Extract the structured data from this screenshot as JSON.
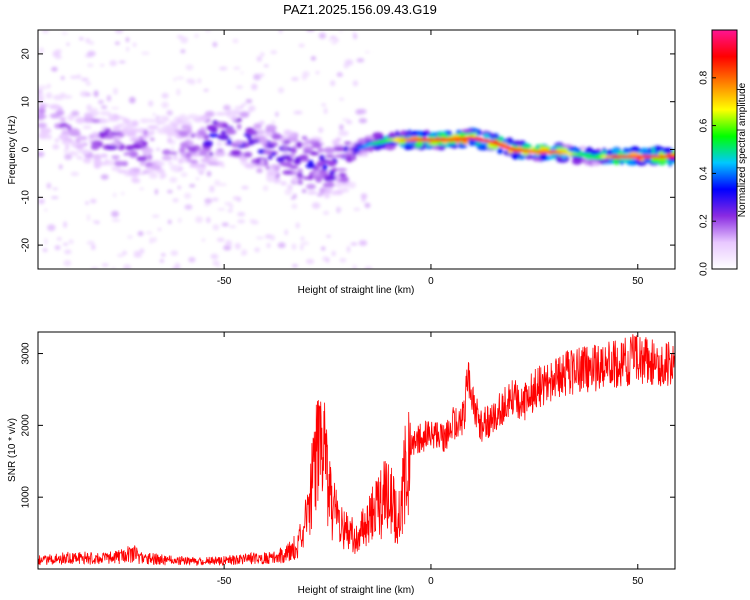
{
  "title": "PAZ1.2025.156.09.43.G19",
  "chart_data": [
    {
      "type": "heatmap",
      "xlabel": "Height of straight line (km)",
      "ylabel": "Frequency (Hz)",
      "xlim": [
        -95,
        59
      ],
      "ylim": [
        -25,
        25
      ],
      "xticks": [
        -50,
        0,
        50
      ],
      "yticks": [
        -20,
        -10,
        0,
        10,
        20
      ],
      "colorbar": {
        "label": "Normalized spectral amplitude",
        "range": [
          0,
          1
        ],
        "ticks": [
          "0.0",
          "0.2",
          "0.4",
          "0.6",
          "0.8"
        ],
        "colormap": [
          "#ffffff",
          "#e8c8ff",
          "#8a2be2",
          "#0000ff",
          "#00c8ff",
          "#00ff00",
          "#ffff00",
          "#ff8000",
          "#ff0000",
          "#ff1493"
        ]
      },
      "ridge": {
        "x": [
          -95,
          -90,
          -85,
          -80,
          -75,
          -70,
          -65,
          -60,
          -55,
          -50,
          -45,
          -40,
          -35,
          -30,
          -25,
          -22,
          -18,
          -15,
          -10,
          -5,
          0,
          5,
          10,
          15,
          20,
          25,
          30,
          35,
          40,
          45,
          50,
          55,
          59
        ],
        "y": [
          8,
          6,
          4,
          2,
          1,
          0,
          0.5,
          1,
          2,
          3,
          2.5,
          0,
          -2,
          -3,
          -4,
          -3,
          0,
          1,
          2,
          2,
          2,
          2,
          2.5,
          1.5,
          0,
          -0.5,
          -0.5,
          -1,
          -1.5,
          -1.5,
          -1.5,
          -1.5,
          -1.5
        ],
        "amplitude": [
          0.15,
          0.2,
          0.2,
          0.25,
          0.25,
          0.25,
          0.2,
          0.2,
          0.3,
          0.35,
          0.3,
          0.3,
          0.3,
          0.35,
          0.3,
          0.3,
          0.35,
          0.45,
          0.6,
          0.8,
          0.9,
          0.9,
          0.9,
          0.9,
          0.9,
          0.8,
          0.85,
          0.6,
          0.5,
          0.9,
          0.95,
          0.9,
          0.85
        ]
      }
    },
    {
      "type": "line",
      "xlabel": "Height of straight line (km)",
      "ylabel": "SNR (10 * v/v)",
      "xlim": [
        -95,
        59
      ],
      "ylim": [
        0,
        3300
      ],
      "xticks": [
        -50,
        0,
        50
      ],
      "yticks": [
        1000,
        2000,
        3000
      ],
      "color": "#ff0000",
      "series": [
        {
          "x": [
            -95,
            -90,
            -85,
            -80,
            -75,
            -72,
            -70,
            -65,
            -60,
            -55,
            -50,
            -45,
            -40,
            -35,
            -32,
            -30,
            -28,
            -26,
            -25,
            -24,
            -22,
            -20,
            -18,
            -15,
            -12,
            -10,
            -8,
            -6,
            -5,
            -3,
            0,
            3,
            5,
            8,
            9,
            10,
            12,
            15,
            18,
            20,
            22,
            25,
            28,
            30,
            35,
            40,
            45,
            48,
            50,
            52,
            55,
            59
          ],
          "y": [
            120,
            150,
            160,
            140,
            170,
            220,
            150,
            130,
            110,
            100,
            120,
            140,
            150,
            200,
            350,
            700,
            1500,
            1800,
            1200,
            900,
            600,
            500,
            450,
            700,
            900,
            1200,
            600,
            1400,
            1700,
            1800,
            1900,
            1800,
            2000,
            2100,
            2800,
            2300,
            2000,
            2100,
            2300,
            2400,
            2300,
            2500,
            2600,
            2700,
            2750,
            2800,
            2850,
            2900,
            2950,
            2900,
            2850,
            2850
          ]
        }
      ]
    }
  ]
}
